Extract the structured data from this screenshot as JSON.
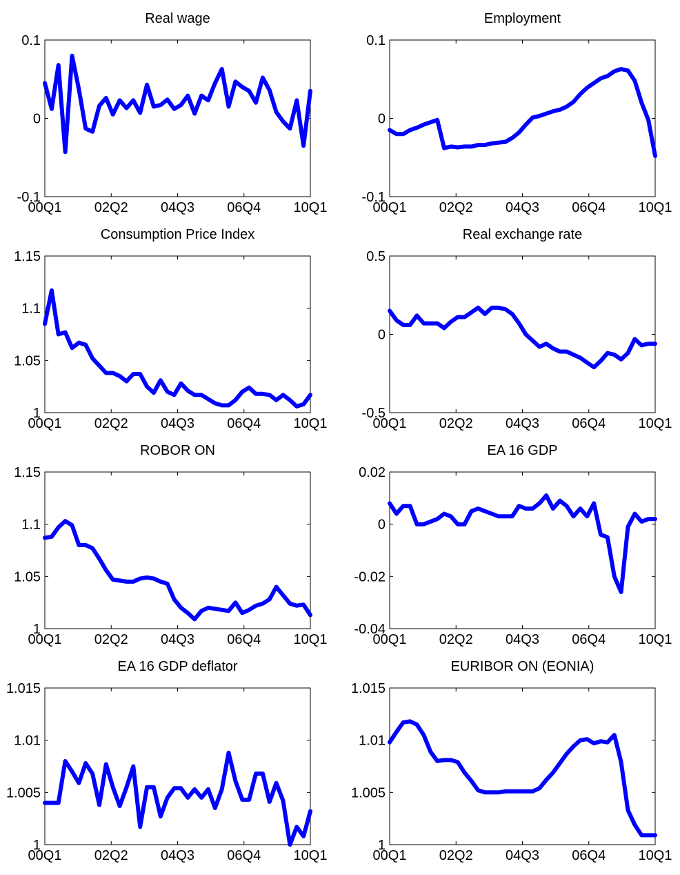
{
  "chart_data": [
    {
      "type": "line",
      "title": "Real wage",
      "xlabel": "",
      "ylabel": "",
      "x_tick_labels": [
        "00Q1",
        "02Q2",
        "04Q3",
        "06Q4",
        "10Q1"
      ],
      "y_tick_labels": [
        "-0.1",
        "0",
        "0.1"
      ],
      "ylim": [
        -0.1,
        0.1
      ],
      "grid": false,
      "color": "#0000ff",
      "series": [
        {
          "values": [
            0.045,
            0.012,
            0.068,
            -0.043,
            0.08,
            0.037,
            -0.013,
            -0.017,
            0.016,
            0.026,
            0.005,
            0.023,
            0.013,
            0.023,
            0.007,
            0.043,
            0.015,
            0.017,
            0.024,
            0.012,
            0.017,
            0.029,
            0.006,
            0.029,
            0.023,
            0.045,
            0.063,
            0.015,
            0.047,
            0.04,
            0.035,
            0.02,
            0.052,
            0.036,
            0.008,
            -0.004,
            -0.013,
            0.023,
            -0.035,
            0.035
          ]
        }
      ]
    },
    {
      "type": "line",
      "title": "Employment",
      "xlabel": "",
      "ylabel": "",
      "x_tick_labels": [
        "00Q1",
        "02Q2",
        "04Q3",
        "06Q4",
        "10Q1"
      ],
      "y_tick_labels": [
        "-0.1",
        "0",
        "0.1"
      ],
      "ylim": [
        -0.1,
        0.1
      ],
      "grid": false,
      "color": "#0000ff",
      "series": [
        {
          "values": [
            -0.015,
            -0.02,
            -0.02,
            -0.015,
            -0.012,
            -0.008,
            -0.005,
            -0.002,
            -0.038,
            -0.036,
            -0.037,
            -0.036,
            -0.036,
            -0.034,
            -0.034,
            -0.032,
            -0.031,
            -0.03,
            -0.025,
            -0.018,
            -0.008,
            0.001,
            0.003,
            0.006,
            0.009,
            0.011,
            0.015,
            0.021,
            0.031,
            0.039,
            0.045,
            0.051,
            0.054,
            0.06,
            0.063,
            0.061,
            0.048,
            0.02,
            -0.002,
            -0.048
          ]
        }
      ]
    },
    {
      "type": "line",
      "title": "Consumption Price Index",
      "xlabel": "",
      "ylabel": "",
      "x_tick_labels": [
        "00Q1",
        "02Q2",
        "04Q3",
        "06Q4",
        "10Q1"
      ],
      "y_tick_labels": [
        "1",
        "1.05",
        "1.1",
        "1.15"
      ],
      "ylim": [
        1,
        1.15
      ],
      "grid": false,
      "color": "#0000ff",
      "series": [
        {
          "values": [
            1.085,
            1.117,
            1.075,
            1.077,
            1.062,
            1.067,
            1.065,
            1.052,
            1.045,
            1.038,
            1.038,
            1.035,
            1.03,
            1.037,
            1.037,
            1.025,
            1.019,
            1.031,
            1.02,
            1.017,
            1.028,
            1.021,
            1.017,
            1.017,
            1.013,
            1.009,
            1.007,
            1.007,
            1.012,
            1.02,
            1.024,
            1.018,
            1.018,
            1.017,
            1.012,
            1.017,
            1.012,
            1.006,
            1.008,
            1.017
          ]
        }
      ]
    },
    {
      "type": "line",
      "title": "Real exchange rate",
      "xlabel": "",
      "ylabel": "",
      "x_tick_labels": [
        "00Q1",
        "02Q2",
        "04Q3",
        "06Q4",
        "10Q1"
      ],
      "y_tick_labels": [
        "-0.5",
        "0",
        "0.5"
      ],
      "ylim": [
        -0.5,
        0.5
      ],
      "grid": false,
      "color": "#0000ff",
      "series": [
        {
          "values": [
            0.15,
            0.09,
            0.06,
            0.06,
            0.12,
            0.07,
            0.07,
            0.07,
            0.04,
            0.08,
            0.11,
            0.11,
            0.14,
            0.17,
            0.13,
            0.17,
            0.17,
            0.16,
            0.13,
            0.07,
            0.0,
            -0.04,
            -0.08,
            -0.06,
            -0.09,
            -0.11,
            -0.11,
            -0.13,
            -0.15,
            -0.18,
            -0.21,
            -0.17,
            -0.12,
            -0.13,
            -0.16,
            -0.12,
            -0.03,
            -0.07,
            -0.06,
            -0.06
          ]
        }
      ]
    },
    {
      "type": "line",
      "title": "ROBOR ON",
      "xlabel": "",
      "ylabel": "",
      "x_tick_labels": [
        "00Q1",
        "02Q2",
        "04Q3",
        "06Q4",
        "10Q1"
      ],
      "y_tick_labels": [
        "1",
        "1.05",
        "1.1",
        "1.15"
      ],
      "ylim": [
        1,
        1.15
      ],
      "grid": false,
      "color": "#0000ff",
      "series": [
        {
          "values": [
            1.087,
            1.088,
            1.097,
            1.103,
            1.099,
            1.08,
            1.08,
            1.077,
            1.067,
            1.056,
            1.047,
            1.046,
            1.045,
            1.045,
            1.048,
            1.049,
            1.048,
            1.045,
            1.043,
            1.028,
            1.02,
            1.015,
            1.009,
            1.017,
            1.02,
            1.019,
            1.018,
            1.017,
            1.025,
            1.015,
            1.018,
            1.022,
            1.024,
            1.028,
            1.04,
            1.032,
            1.024,
            1.022,
            1.023,
            1.013
          ]
        }
      ]
    },
    {
      "type": "line",
      "title": "EA 16 GDP",
      "xlabel": "",
      "ylabel": "",
      "x_tick_labels": [
        "00Q1",
        "02Q2",
        "04Q3",
        "06Q4",
        "10Q1"
      ],
      "y_tick_labels": [
        "-0.04",
        "-0.02",
        "0",
        "0.02"
      ],
      "ylim": [
        -0.04,
        0.02
      ],
      "grid": false,
      "color": "#0000ff",
      "series": [
        {
          "values": [
            0.008,
            0.004,
            0.007,
            0.007,
            0.0,
            0.0,
            0.001,
            0.002,
            0.004,
            0.003,
            0.0,
            0.0,
            0.005,
            0.006,
            0.005,
            0.004,
            0.003,
            0.003,
            0.003,
            0.007,
            0.006,
            0.006,
            0.008,
            0.011,
            0.006,
            0.009,
            0.007,
            0.003,
            0.006,
            0.003,
            0.008,
            -0.004,
            -0.005,
            -0.02,
            -0.026,
            -0.001,
            0.004,
            0.001,
            0.002,
            0.002
          ]
        }
      ]
    },
    {
      "type": "line",
      "title": "EA 16 GDP deflator",
      "xlabel": "",
      "ylabel": "",
      "x_tick_labels": [
        "00Q1",
        "02Q2",
        "04Q3",
        "06Q4",
        "10Q1"
      ],
      "y_tick_labels": [
        "1",
        "1.005",
        "1.01",
        "1.015"
      ],
      "ylim": [
        1,
        1.015
      ],
      "grid": false,
      "color": "#0000ff",
      "series": [
        {
          "values": [
            1.004,
            1.004,
            1.004,
            1.008,
            1.007,
            1.0059,
            1.0078,
            1.0068,
            1.0038,
            1.0077,
            1.0055,
            1.0037,
            1.0055,
            1.0075,
            1.0017,
            1.0055,
            1.0055,
            1.0027,
            1.0045,
            1.0054,
            1.0054,
            1.0045,
            1.0053,
            1.0045,
            1.0053,
            1.0035,
            1.0053,
            1.0088,
            1.0061,
            1.0043,
            1.0043,
            1.0068,
            1.0068,
            1.0041,
            1.0059,
            1.0042,
            1.0,
            1.0017,
            1.0008,
            1.0032
          ]
        }
      ]
    },
    {
      "type": "line",
      "title": "EURIBOR ON (EONIA)",
      "xlabel": "",
      "ylabel": "",
      "x_tick_labels": [
        "00Q1",
        "02Q2",
        "04Q3",
        "06Q4",
        "10Q1"
      ],
      "y_tick_labels": [
        "1",
        "1.005",
        "1.01",
        "1.015"
      ],
      "ylim": [
        1,
        1.015
      ],
      "grid": false,
      "color": "#0000ff",
      "series": [
        {
          "values": [
            1.0098,
            1.0108,
            1.0117,
            1.0118,
            1.0115,
            1.0105,
            1.0089,
            1.008,
            1.0081,
            1.0081,
            1.0079,
            1.0069,
            1.0061,
            1.0052,
            1.005,
            1.005,
            1.005,
            1.0051,
            1.0051,
            1.0051,
            1.0051,
            1.0051,
            1.0054,
            1.0062,
            1.0069,
            1.0078,
            1.0087,
            1.0094,
            1.01,
            1.0101,
            1.0097,
            1.0099,
            1.0098,
            1.0105,
            1.0079,
            1.0033,
            1.0019,
            1.0009,
            1.0009,
            1.0009
          ]
        }
      ]
    }
  ]
}
